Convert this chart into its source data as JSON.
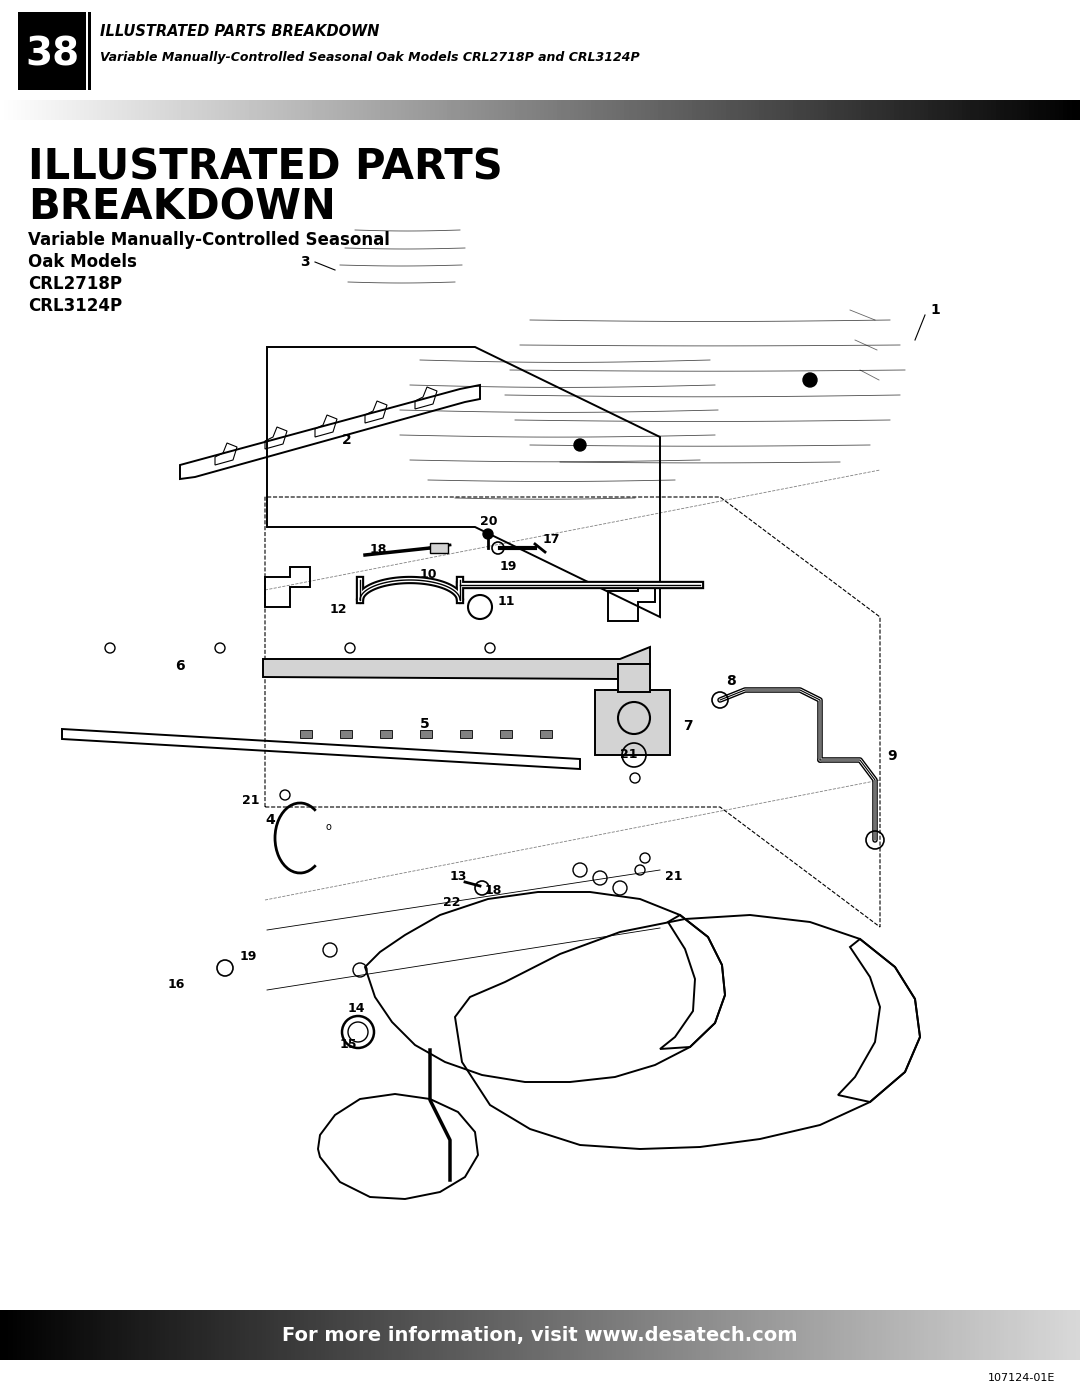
{
  "page_number": "38",
  "header_title": "ILLUSTRATED PARTS BREAKDOWN",
  "header_subtitle": "Variable Manually-Controlled Seasonal Oak Models CRL2718P and CRL3124P",
  "main_title_line1": "ILLUSTRATED PARTS",
  "main_title_line2": "BREAKDOWN",
  "subtitle_line1": "Variable Manually-Controlled Seasonal",
  "subtitle_line2": "Oak Models",
  "subtitle_line3": "CRL2718P",
  "subtitle_line4": "CRL3124P",
  "footer_text": "For more information, visit www.desatech.com",
  "footer_code": "107124-01E",
  "bg_color": "#ffffff",
  "fig_width": 10.8,
  "fig_height": 13.97,
  "dpi": 100
}
